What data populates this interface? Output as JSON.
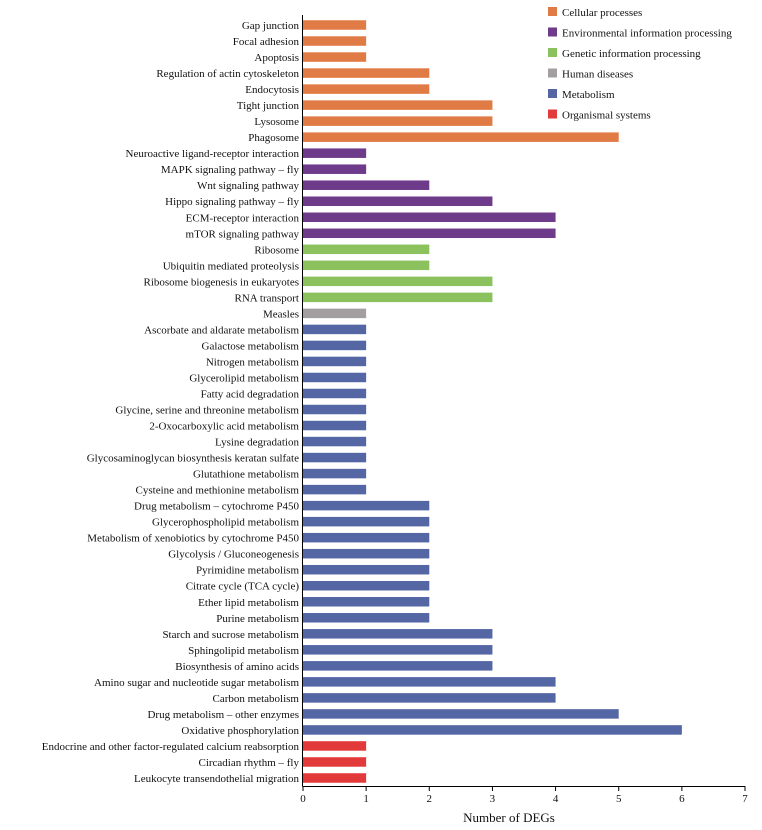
{
  "chart_data": {
    "type": "bar",
    "orientation": "horizontal",
    "title": "",
    "xlabel": "Number of  DEGs",
    "ylabel": "",
    "xlim": [
      0,
      7
    ],
    "xticks": [
      "0",
      "1",
      "2",
      "3",
      "4",
      "5",
      "6",
      "7"
    ],
    "grid": false,
    "legend_position": "top-right",
    "groups": [
      {
        "name": "Cellular processes",
        "color": "#E07B45"
      },
      {
        "name": "Environmental information processing",
        "color": "#6E3A8A"
      },
      {
        "name": "Genetic information processing",
        "color": "#8CC25E"
      },
      {
        "name": "Human diseases",
        "color": "#A39FA1"
      },
      {
        "name": "Metabolism",
        "color": "#5566A5"
      },
      {
        "name": "Organismal systems",
        "color": "#E2393A"
      }
    ],
    "bars": [
      {
        "label": "Gap junction",
        "value": 1,
        "group": 0
      },
      {
        "label": "Focal adhesion",
        "value": 1,
        "group": 0
      },
      {
        "label": "Apoptosis",
        "value": 1,
        "group": 0
      },
      {
        "label": "Regulation of actin cytoskeleton",
        "value": 2,
        "group": 0
      },
      {
        "label": "Endocytosis",
        "value": 2,
        "group": 0
      },
      {
        "label": "Tight junction",
        "value": 3,
        "group": 0
      },
      {
        "label": "Lysosome",
        "value": 3,
        "group": 0
      },
      {
        "label": "Phagosome",
        "value": 5,
        "group": 0
      },
      {
        "label": "Neuroactive ligand-receptor interaction",
        "value": 1,
        "group": 1
      },
      {
        "label": "MAPK signaling pathway – fly",
        "value": 1,
        "group": 1
      },
      {
        "label": "Wnt signaling pathway",
        "value": 2,
        "group": 1
      },
      {
        "label": "Hippo signaling pathway – fly",
        "value": 3,
        "group": 1
      },
      {
        "label": "ECM-receptor interaction",
        "value": 4,
        "group": 1
      },
      {
        "label": "mTOR signaling pathway",
        "value": 4,
        "group": 1
      },
      {
        "label": "Ribosome",
        "value": 2,
        "group": 2
      },
      {
        "label": "Ubiquitin mediated proteolysis",
        "value": 2,
        "group": 2
      },
      {
        "label": "Ribosome biogenesis in eukaryotes",
        "value": 3,
        "group": 2
      },
      {
        "label": "RNA transport",
        "value": 3,
        "group": 2
      },
      {
        "label": "Measles",
        "value": 1,
        "group": 3
      },
      {
        "label": "Ascorbate and aldarate metabolism",
        "value": 1,
        "group": 4
      },
      {
        "label": "Galactose metabolism",
        "value": 1,
        "group": 4
      },
      {
        "label": "Nitrogen metabolism",
        "value": 1,
        "group": 4
      },
      {
        "label": "Glycerolipid metabolism",
        "value": 1,
        "group": 4
      },
      {
        "label": "Fatty acid degradation",
        "value": 1,
        "group": 4
      },
      {
        "label": "Glycine, serine and threonine metabolism",
        "value": 1,
        "group": 4
      },
      {
        "label": "2-Oxocarboxylic acid metabolism",
        "value": 1,
        "group": 4
      },
      {
        "label": "Lysine degradation",
        "value": 1,
        "group": 4
      },
      {
        "label": "Glycosaminoglycan biosynthesis   keratan sulfate",
        "value": 1,
        "group": 4
      },
      {
        "label": "Glutathione metabolism",
        "value": 1,
        "group": 4
      },
      {
        "label": "Cysteine and methionine metabolism",
        "value": 1,
        "group": 4
      },
      {
        "label": "Drug metabolism – cytochrome P450",
        "value": 2,
        "group": 4
      },
      {
        "label": "Glycerophospholipid metabolism",
        "value": 2,
        "group": 4
      },
      {
        "label": "Metabolism of xenobiotics by cytochrome P450",
        "value": 2,
        "group": 4
      },
      {
        "label": "Glycolysis / Gluconeogenesis",
        "value": 2,
        "group": 4
      },
      {
        "label": "Pyrimidine metabolism",
        "value": 2,
        "group": 4
      },
      {
        "label": "Citrate cycle (TCA cycle)",
        "value": 2,
        "group": 4
      },
      {
        "label": "Ether lipid metabolism",
        "value": 2,
        "group": 4
      },
      {
        "label": "Purine metabolism",
        "value": 2,
        "group": 4
      },
      {
        "label": "Starch and sucrose metabolism",
        "value": 3,
        "group": 4
      },
      {
        "label": "Sphingolipid metabolism",
        "value": 3,
        "group": 4
      },
      {
        "label": "Biosynthesis of amino acids",
        "value": 3,
        "group": 4
      },
      {
        "label": "Amino sugar and nucleotide sugar metabolism",
        "value": 4,
        "group": 4
      },
      {
        "label": "Carbon metabolism",
        "value": 4,
        "group": 4
      },
      {
        "label": "Drug metabolism – other enzymes",
        "value": 5,
        "group": 4
      },
      {
        "label": "Oxidative phosphorylation",
        "value": 6,
        "group": 4
      },
      {
        "label": "Endocrine and other factor-regulated calcium reabsorption",
        "value": 1,
        "group": 5
      },
      {
        "label": "Circadian rhythm – fly",
        "value": 1,
        "group": 5
      },
      {
        "label": "Leukocyte transendothelial migration",
        "value": 1,
        "group": 5
      }
    ]
  }
}
